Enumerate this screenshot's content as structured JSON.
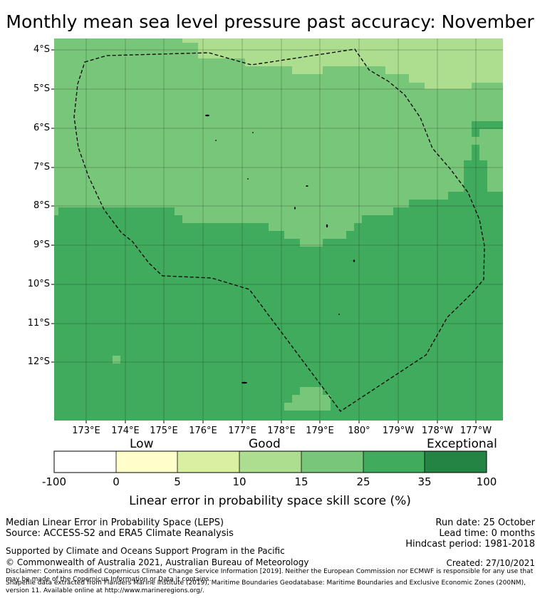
{
  "title": "Monthly mean sea level pressure past accuracy: November",
  "map": {
    "lat_labels": [
      "4°S",
      "5°S",
      "6°S",
      "7°S",
      "8°S",
      "9°S",
      "10°S",
      "11°S",
      "12°S"
    ],
    "lon_labels": [
      "173°E",
      "174°E",
      "175°E",
      "176°E",
      "177°E",
      "178°E",
      "179°E",
      "180°",
      "179°W",
      "178°W",
      "177°W"
    ],
    "region_outline": "dashed EEZ boundary (Tuvalu)",
    "region_colors": {
      "skill_15_25": "#78c679",
      "skill_25_35": "#41ab5d",
      "skill_10_15": "#addd8e"
    }
  },
  "colorbar": {
    "category_labels": [
      "Low",
      "Good",
      "Exceptional"
    ],
    "ticks": [
      "-100",
      "0",
      "5",
      "10",
      "15",
      "25",
      "35",
      "100"
    ],
    "colors": [
      "#ffffff",
      "#ffffcc",
      "#d9f0a3",
      "#addd8e",
      "#78c679",
      "#41ab5d",
      "#238443"
    ],
    "label": "Linear error in probability space skill score (%)"
  },
  "footer": {
    "metric": "Median Linear Error in Probability Space (LEPS)",
    "source": "Source: ACCESS-S2 and ERA5 Climate Reanalysis",
    "run_date": "Run date: 25 October",
    "lead_time": "Lead time: 0 months",
    "hindcast": "Hindcast period: 1981-2018",
    "support": "Supported by Climate and Oceans Support Program in the Pacific",
    "copyright": "© Commonwealth of Australia 2021, Australian Bureau of Meteorology",
    "created": "Created: 27/10/2021",
    "disclaimer": "Disclaimer: Contains modified Copernicus Climate Change Service Information [2019]. Neither the European Commission nor ECMWF is responsible for any use that may be made of the Copernicus Information or Data it contains.",
    "shapefile": "Shapefile data extracted from Flanders Marine Institute (2019), Maritime Boundaries Geodatabase: Maritime Boundaries and Exclusive Economic Zones (200NM), version 11. Available online at http://www.marineregions.org/."
  }
}
